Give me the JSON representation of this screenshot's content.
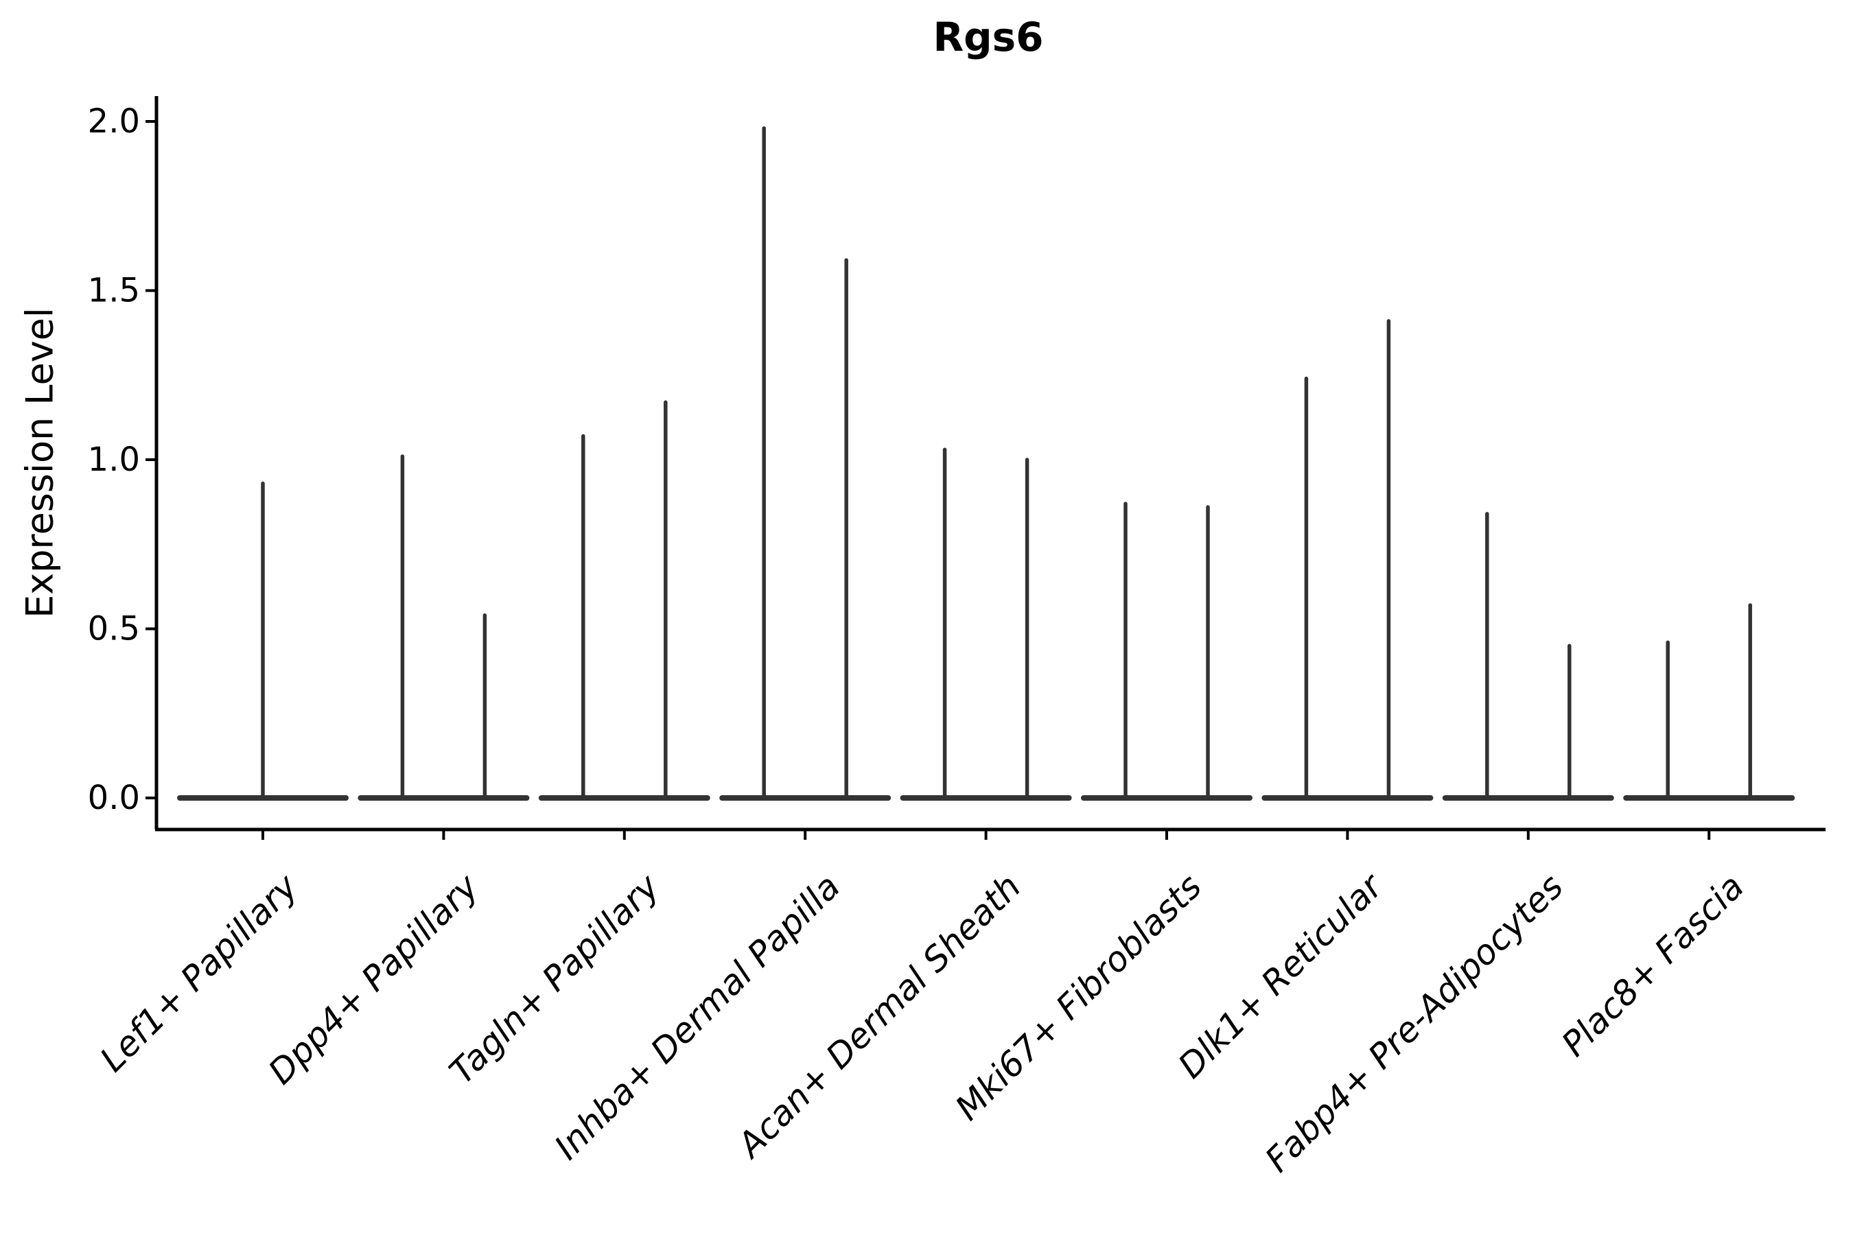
{
  "figure": {
    "title": "Rgs6",
    "background": "#ffffff"
  },
  "chart_data": {
    "type": "violin",
    "title": "Rgs6",
    "xlabel": "",
    "ylabel": "Expression Level",
    "ylim": [
      -0.09,
      2.075
    ],
    "yticks": [
      "0.0",
      "0.5",
      "1.0",
      "1.5",
      "2.0"
    ],
    "ytick_values": [
      0.0,
      0.5,
      1.0,
      1.5,
      2.0
    ],
    "grid": false,
    "legend": "none",
    "categories": [
      "Lef1+ Papillary",
      "Dpp4+ Papillary",
      "Tagln+ Papillary",
      "Inhba+ Dermal Papilla",
      "Acan+ Dermal Sheath",
      "Mki67+ Fibroblasts",
      "Dlk1+ Reticular",
      "Fabp4+ Pre-Adipocytes",
      "Plac8+ Fascia"
    ],
    "violins": [
      {
        "category": "Lef1+ Papillary",
        "spikes": [
          {
            "side": "center",
            "max": 0.93
          }
        ]
      },
      {
        "category": "Dpp4+ Papillary",
        "spikes": [
          {
            "side": "left",
            "max": 1.01
          },
          {
            "side": "right",
            "max": 0.54
          }
        ]
      },
      {
        "category": "Tagln+ Papillary",
        "spikes": [
          {
            "side": "left",
            "max": 1.07
          },
          {
            "side": "right",
            "max": 1.17
          }
        ]
      },
      {
        "category": "Inhba+ Dermal Papilla",
        "spikes": [
          {
            "side": "left",
            "max": 1.98
          },
          {
            "side": "right",
            "max": 1.59
          }
        ]
      },
      {
        "category": "Acan+ Dermal Sheath",
        "spikes": [
          {
            "side": "left",
            "max": 1.03
          },
          {
            "side": "right",
            "max": 1.0
          }
        ]
      },
      {
        "category": "Mki67+ Fibroblasts",
        "spikes": [
          {
            "side": "left",
            "max": 0.87
          },
          {
            "side": "right",
            "max": 0.86
          }
        ]
      },
      {
        "category": "Dlk1+ Reticular",
        "spikes": [
          {
            "side": "left",
            "max": 1.24
          },
          {
            "side": "right",
            "max": 1.41
          }
        ]
      },
      {
        "category": "Fabp4+ Pre-Adipocytes",
        "spikes": [
          {
            "side": "left",
            "max": 0.84
          },
          {
            "side": "right",
            "max": 0.45
          }
        ]
      },
      {
        "category": "Plac8+ Fascia",
        "spikes": [
          {
            "side": "left",
            "max": 0.46
          },
          {
            "side": "right",
            "max": 0.57
          }
        ]
      }
    ],
    "colors": {
      "violin_line": "#333333",
      "axis": "#000000",
      "text": "#000000"
    }
  }
}
